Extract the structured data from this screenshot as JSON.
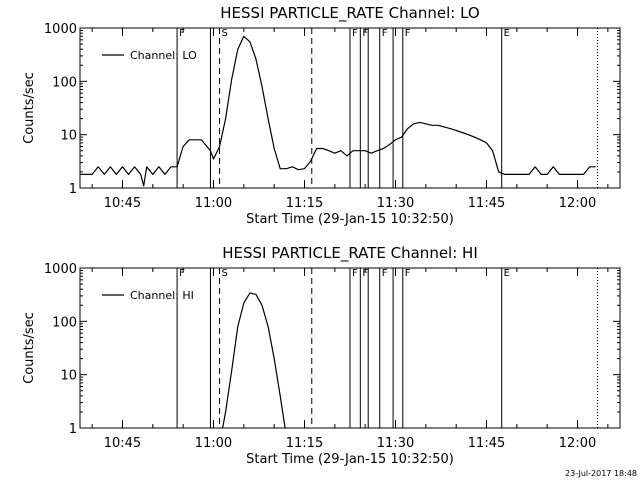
{
  "footer": {
    "timestamp": "23-Jul-2017 18:48"
  },
  "chart_data": [
    {
      "type": "line",
      "title": "HESSI PARTICLE_RATE Channel: LO",
      "xlabel": "Start Time (29-Jan-15 10:32:50)",
      "ylabel": "Counts/sec",
      "yscale": "log",
      "ylim": [
        1,
        1000
      ],
      "xlim_min": [
        38,
        127
      ],
      "xticks": [
        {
          "min": 45,
          "label": "10:45"
        },
        {
          "min": 60,
          "label": "11:00"
        },
        {
          "min": 75,
          "label": "11:15"
        },
        {
          "min": 90,
          "label": "11:30"
        },
        {
          "min": 105,
          "label": "11:45"
        },
        {
          "min": 120,
          "label": "12:00"
        }
      ],
      "yticks": [
        {
          "value": 1,
          "label": "1"
        },
        {
          "value": 10,
          "label": "10"
        },
        {
          "value": 100,
          "label": "100"
        },
        {
          "value": 1000,
          "label": "1000"
        }
      ],
      "legend": {
        "label": "Channel: LO",
        "position": "top-left"
      },
      "markers": [
        {
          "min": 54.0,
          "label": "F",
          "style": "solid"
        },
        {
          "min": 59.5,
          "label": "",
          "style": "solid"
        },
        {
          "min": 61.0,
          "label": "S",
          "style": "dashed"
        },
        {
          "min": 76.2,
          "label": "",
          "style": "dashed"
        },
        {
          "min": 82.5,
          "label": "F",
          "style": "solid"
        },
        {
          "min": 84.2,
          "label": "F",
          "style": "solid"
        },
        {
          "min": 85.5,
          "label": "",
          "style": "solid"
        },
        {
          "min": 87.4,
          "label": "F",
          "style": "solid"
        },
        {
          "min": 89.6,
          "label": "",
          "style": "solid"
        },
        {
          "min": 91.2,
          "label": "F",
          "style": "solid"
        },
        {
          "min": 107.5,
          "label": "E",
          "style": "solid"
        },
        {
          "min": 123.3,
          "label": "",
          "style": "dotted"
        }
      ],
      "series": [
        {
          "name": "Channel: LO",
          "x": [
            38,
            40,
            41,
            42,
            43,
            44,
            45,
            46,
            47,
            48,
            48.5,
            49,
            50,
            51,
            52,
            53,
            54,
            55,
            56,
            57,
            58,
            59.5,
            60,
            61,
            62,
            63,
            64,
            65,
            66,
            67,
            68,
            69,
            70,
            71,
            72,
            73,
            74,
            75,
            76,
            77,
            78,
            79,
            80,
            81,
            82,
            83,
            84,
            85,
            86,
            87,
            88,
            89,
            90,
            91,
            92,
            93,
            94,
            95,
            96,
            97,
            98,
            99,
            100,
            101,
            102,
            103,
            104,
            105,
            106,
            107,
            108,
            109,
            110,
            111,
            112,
            113,
            114,
            115,
            116,
            117,
            118,
            119,
            120,
            121,
            122,
            123
          ],
          "y": [
            1.8,
            1.8,
            2.5,
            1.8,
            2.5,
            1.8,
            2.5,
            1.8,
            2.5,
            1.8,
            1.1,
            2.5,
            1.8,
            2.5,
            1.8,
            2.5,
            2.5,
            6,
            8,
            8,
            8,
            5,
            3.5,
            6,
            20,
            110,
            400,
            700,
            550,
            260,
            80,
            20,
            5.5,
            2.3,
            2.3,
            2.5,
            2.2,
            2.3,
            3.2,
            5.5,
            5.5,
            5,
            4.5,
            5,
            4,
            5,
            5,
            5,
            4.5,
            5,
            5.5,
            6.5,
            8,
            9,
            13,
            16,
            17,
            16,
            15,
            15,
            14,
            13,
            12,
            11,
            10,
            9,
            8,
            7,
            5,
            2,
            1.8,
            1.8,
            1.8,
            1.8,
            1.8,
            2.5,
            1.8,
            1.8,
            2.5,
            1.8,
            1.8,
            1.8,
            1.8,
            1.8,
            2.5,
            2.5
          ]
        }
      ]
    },
    {
      "type": "line",
      "title": "HESSI PARTICLE_RATE Channel: HI",
      "xlabel": "Start Time (29-Jan-15 10:32:50)",
      "ylabel": "Counts/sec",
      "yscale": "log",
      "ylim": [
        1,
        1000
      ],
      "xlim_min": [
        38,
        127
      ],
      "xticks": [
        {
          "min": 45,
          "label": "10:45"
        },
        {
          "min": 60,
          "label": "11:00"
        },
        {
          "min": 75,
          "label": "11:15"
        },
        {
          "min": 90,
          "label": "11:30"
        },
        {
          "min": 105,
          "label": "11:45"
        },
        {
          "min": 120,
          "label": "12:00"
        }
      ],
      "yticks": [
        {
          "value": 1,
          "label": "1"
        },
        {
          "value": 10,
          "label": "10"
        },
        {
          "value": 100,
          "label": "100"
        },
        {
          "value": 1000,
          "label": "1000"
        }
      ],
      "legend": {
        "label": "Channel: HI",
        "position": "top-left"
      },
      "markers": [
        {
          "min": 54.0,
          "label": "F",
          "style": "solid"
        },
        {
          "min": 59.5,
          "label": "",
          "style": "solid"
        },
        {
          "min": 61.0,
          "label": "S",
          "style": "dashed"
        },
        {
          "min": 76.2,
          "label": "",
          "style": "dashed"
        },
        {
          "min": 82.5,
          "label": "F",
          "style": "solid"
        },
        {
          "min": 84.2,
          "label": "F",
          "style": "solid"
        },
        {
          "min": 85.5,
          "label": "",
          "style": "solid"
        },
        {
          "min": 87.4,
          "label": "F",
          "style": "solid"
        },
        {
          "min": 89.6,
          "label": "",
          "style": "solid"
        },
        {
          "min": 91.2,
          "label": "F",
          "style": "solid"
        },
        {
          "min": 107.5,
          "label": "E",
          "style": "solid"
        },
        {
          "min": 123.3,
          "label": "",
          "style": "dotted"
        }
      ],
      "series": [
        {
          "name": "Channel: HI",
          "x": [
            61.5,
            62,
            63,
            64,
            65,
            66,
            67,
            68,
            69,
            70,
            71,
            71.8
          ],
          "y": [
            1,
            2,
            12,
            80,
            220,
            340,
            320,
            200,
            80,
            20,
            4,
            1
          ]
        }
      ]
    }
  ]
}
